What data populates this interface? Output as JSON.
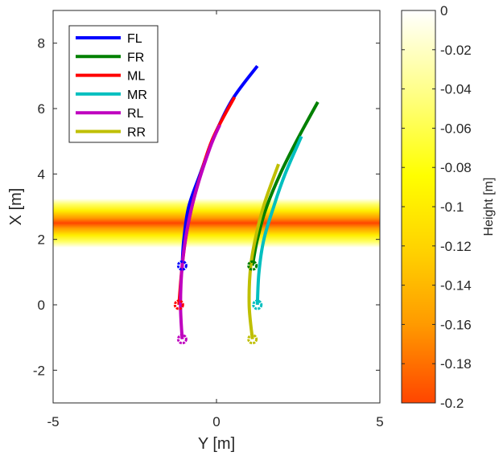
{
  "chart_data": {
    "type": "line",
    "xlabel": "Y [m]",
    "ylabel": "X [m]",
    "xlim": [
      -5,
      5
    ],
    "ylim": [
      -3,
      9
    ],
    "xticks": [
      -5,
      0,
      5
    ],
    "yticks": [
      -2,
      0,
      2,
      4,
      6,
      8
    ],
    "xtick_labels": [
      "-5",
      "0",
      "5"
    ],
    "ytick_labels": [
      "-2",
      "0",
      "2",
      "4",
      "6",
      "8"
    ],
    "grid": false,
    "legend_position": "top-left",
    "terrain": {
      "description": "depression band across the track",
      "center_x": 2.5,
      "half_width": 0.75,
      "min_height": -0.2,
      "max_height": 0
    },
    "colorbar": {
      "label": "Height [m]",
      "range": [
        -0.2,
        0
      ],
      "ticks": [
        0,
        -0.02,
        -0.04,
        -0.06,
        -0.08,
        -0.1,
        -0.12,
        -0.14,
        -0.16,
        -0.18,
        -0.2
      ],
      "tick_labels": [
        "0",
        "-0.02",
        "-0.04",
        "-0.06",
        "-0.08",
        "-0.1",
        "-0.12",
        "-0.14",
        "-0.16",
        "-0.18",
        "-0.2"
      ],
      "colormap": "hot-reversed"
    },
    "series": [
      {
        "name": "FL",
        "color": "#0000ff",
        "points": [
          [
            -1.05,
            1.2
          ],
          [
            -1.0,
            2.0
          ],
          [
            -0.85,
            3.0
          ],
          [
            -0.5,
            4.0
          ],
          [
            -0.05,
            5.2
          ],
          [
            0.5,
            6.3
          ],
          [
            1.25,
            7.3
          ]
        ],
        "marker": [
          -1.05,
          1.2
        ]
      },
      {
        "name": "FR",
        "color": "#008000",
        "points": [
          [
            1.1,
            1.2
          ],
          [
            1.25,
            2.0
          ],
          [
            1.5,
            2.9
          ],
          [
            1.95,
            4.0
          ],
          [
            2.5,
            5.1
          ],
          [
            3.1,
            6.2
          ]
        ],
        "marker": [
          1.1,
          1.2
        ]
      },
      {
        "name": "ML",
        "color": "#ff0000",
        "points": [
          [
            -1.15,
            0.0
          ],
          [
            -1.05,
            1.2
          ],
          [
            -0.9,
            2.3
          ],
          [
            -0.65,
            3.4
          ],
          [
            -0.15,
            5.0
          ],
          [
            0.55,
            6.35
          ]
        ],
        "marker": [
          -1.15,
          0.0
        ]
      },
      {
        "name": "MR",
        "color": "#00bfbf",
        "points": [
          [
            1.25,
            0.0
          ],
          [
            1.3,
            1.0
          ],
          [
            1.45,
            2.0
          ],
          [
            1.75,
            3.0
          ],
          [
            2.1,
            4.0
          ],
          [
            2.6,
            5.15
          ]
        ],
        "marker": [
          1.25,
          0.0
        ]
      },
      {
        "name": "RL",
        "color": "#bf00bf",
        "points": [
          [
            -1.05,
            -1.05
          ],
          [
            -1.1,
            0.0
          ],
          [
            -1.05,
            1.2
          ],
          [
            -0.9,
            2.3
          ],
          [
            -0.65,
            3.4
          ],
          [
            -0.2,
            4.8
          ],
          [
            0.1,
            5.5
          ]
        ],
        "marker": [
          -1.05,
          -1.05
        ]
      },
      {
        "name": "RR",
        "color": "#bfbf00",
        "points": [
          [
            1.1,
            -1.05
          ],
          [
            1.0,
            0.0
          ],
          [
            1.05,
            1.2
          ],
          [
            1.25,
            2.3
          ],
          [
            1.5,
            3.2
          ],
          [
            1.9,
            4.3
          ]
        ],
        "marker": [
          1.1,
          -1.05
        ]
      }
    ]
  }
}
